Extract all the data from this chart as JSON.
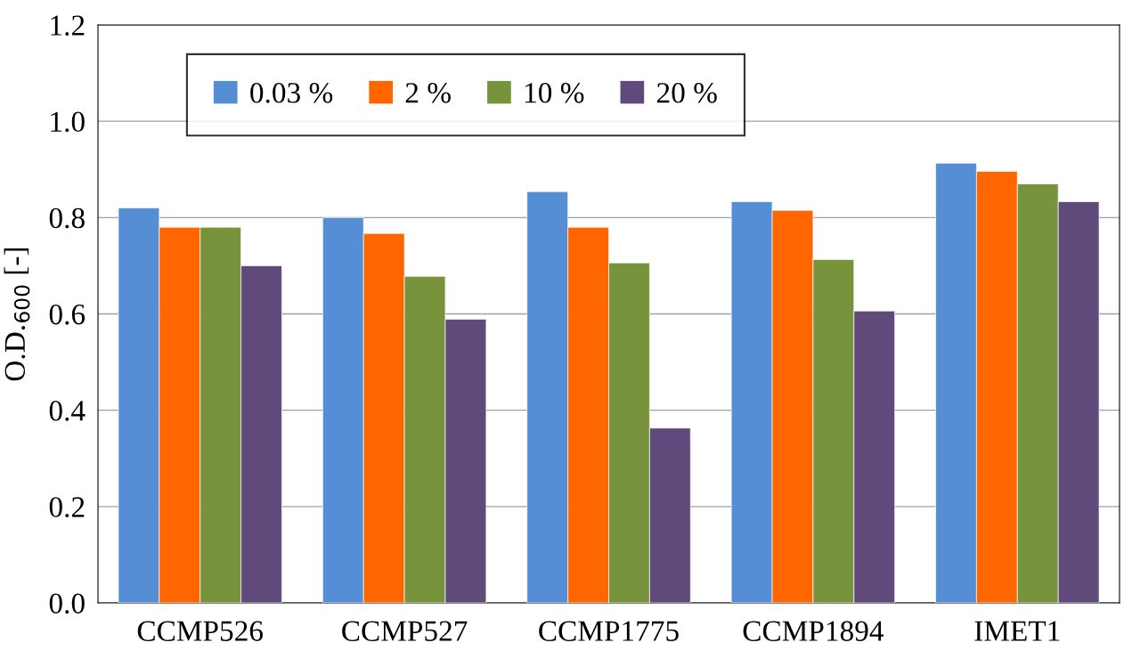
{
  "chart_data": {
    "type": "bar",
    "ylabel": "O.D.$_{600}$ [-]",
    "categories": [
      "CCMP526",
      "CCMP527",
      "CCMP1775",
      "CCMP1894",
      "IMET1"
    ],
    "series": [
      {
        "name": "0.03 %",
        "color": "#558ed5",
        "values": [
          0.82,
          0.8,
          0.854,
          0.833,
          0.913
        ]
      },
      {
        "name": "2 %",
        "color": "#ff6600",
        "values": [
          0.78,
          0.767,
          0.78,
          0.815,
          0.896
        ]
      },
      {
        "name": "10 %",
        "color": "#77933c",
        "values": [
          0.78,
          0.678,
          0.706,
          0.713,
          0.87
        ]
      },
      {
        "name": "20 %",
        "color": "#604a7b",
        "values": [
          0.7,
          0.589,
          0.363,
          0.606,
          0.833
        ]
      }
    ],
    "ylim": [
      0,
      1.2
    ],
    "yticks": [
      {
        "value": 0,
        "label": "0.0"
      },
      {
        "value": 0.2,
        "label": "0.2"
      },
      {
        "value": 0.4,
        "label": "0.4"
      },
      {
        "value": 0.6,
        "label": "0.6"
      },
      {
        "value": 0.8,
        "label": "0.8"
      },
      {
        "value": 1.0,
        "label": "1.0"
      },
      {
        "value": 1.2,
        "label": "1.2"
      }
    ],
    "grid": "y",
    "legend": "top"
  }
}
